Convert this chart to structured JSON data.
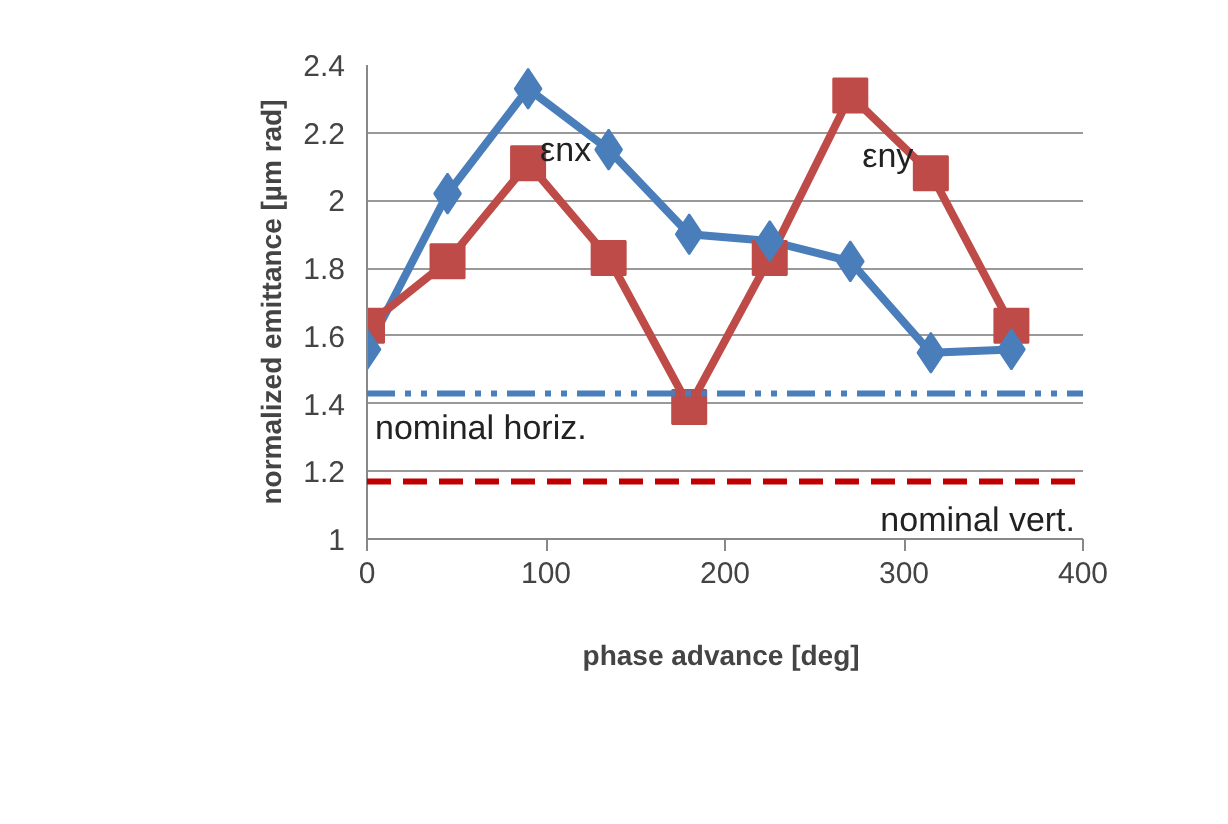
{
  "chart_data": {
    "type": "line",
    "xlabel": "phase advance  [deg]",
    "ylabel": "normalized emittance [µm rad]",
    "x": [
      0,
      45,
      90,
      135,
      180,
      225,
      270,
      315,
      360
    ],
    "series": [
      {
        "name": "εnx",
        "color": "#4a7ebb",
        "marker": "diamond",
        "values": [
          1.56,
          2.02,
          2.33,
          2.15,
          1.9,
          1.88,
          1.82,
          1.55,
          1.56
        ]
      },
      {
        "name": "εny",
        "color": "#be4b48",
        "marker": "square",
        "values": [
          1.63,
          1.82,
          2.11,
          1.83,
          1.39,
          1.83,
          2.31,
          2.08,
          1.63
        ]
      }
    ],
    "ref_lines": [
      {
        "axis": "y",
        "value": 1.43,
        "label": "nominal horiz.",
        "color": "#4a7ebb",
        "line_style": "dashdotdot"
      },
      {
        "axis": "y",
        "value": 1.17,
        "label": "nominal vert.",
        "color": "#c00000",
        "line_style": "dashed"
      }
    ],
    "xlim": [
      0,
      400
    ],
    "xticks": [
      0,
      100,
      200,
      300,
      400
    ],
    "ylim": [
      1,
      2.4
    ],
    "yticks": [
      1,
      1.2,
      1.4,
      1.6,
      1.8,
      2,
      2.2,
      2.4
    ],
    "grid": "y"
  }
}
